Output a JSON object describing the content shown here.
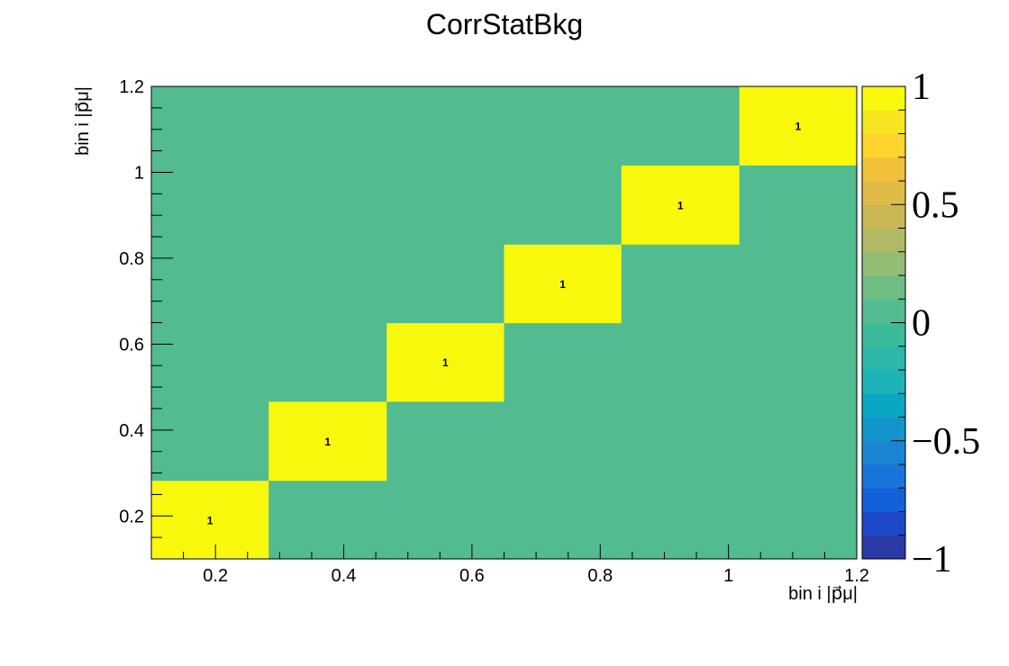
{
  "chart_data": {
    "type": "heatmap",
    "title": "CorrStatBkg",
    "xlabel": "bin i |p⃗μ|",
    "ylabel": "bin i |p⃗μ|",
    "x_edges": [
      0.1,
      0.283,
      0.467,
      0.65,
      0.833,
      1.017,
      1.2
    ],
    "y_edges": [
      0.1,
      0.283,
      0.467,
      0.65,
      0.833,
      1.017,
      1.2
    ],
    "xlim": [
      0.1,
      1.2
    ],
    "ylim": [
      0.1,
      1.2
    ],
    "x_ticks": [
      "0.2",
      "0.4",
      "0.6",
      "0.8",
      "1",
      "1.2"
    ],
    "y_ticks": [
      "0.2",
      "0.4",
      "0.6",
      "0.8",
      "1",
      "1.2"
    ],
    "values": [
      [
        1,
        0,
        0,
        0,
        0,
        0
      ],
      [
        0,
        1,
        0,
        0,
        0,
        0
      ],
      [
        0,
        0,
        1,
        0,
        0,
        0
      ],
      [
        0,
        0,
        0,
        1,
        0,
        0
      ],
      [
        0,
        0,
        0,
        0,
        1,
        0
      ],
      [
        0,
        0,
        0,
        0,
        0,
        1
      ]
    ],
    "cell_labels": [
      "1",
      "1",
      "1",
      "1",
      "1",
      "1"
    ],
    "zlim": [
      -1,
      1
    ],
    "colorbar_ticks": [
      "1",
      "0.5",
      "0",
      "−0.5",
      "−1"
    ],
    "palette": [
      "#2a3aa6",
      "#1d49c9",
      "#1460da",
      "#1774d8",
      "#1c85d3",
      "#1295cc",
      "#0ca6c5",
      "#1db2b6",
      "#2bb8a8",
      "#3bba9a",
      "#52bb90",
      "#70bd84",
      "#93bd74",
      "#b0ba64",
      "#c9b756",
      "#dfba47",
      "#f1c13a",
      "#fcd42c",
      "#f7e61f",
      "#f9f90e"
    ],
    "zero_color": "#52bb90",
    "one_color": "#f9f90e"
  }
}
